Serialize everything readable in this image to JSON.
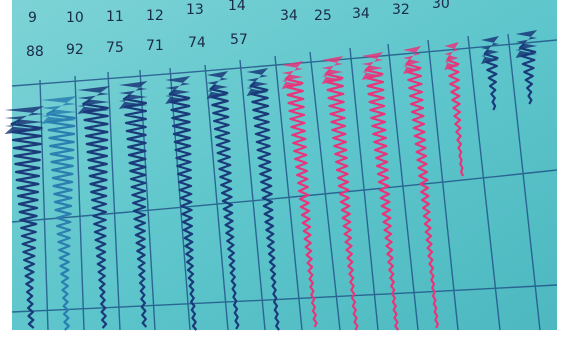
{
  "photo": {
    "top_row_numbers": [
      "9",
      "10",
      "11",
      "12",
      "13",
      "14",
      "",
      "34",
      "25",
      "34",
      "32",
      "30"
    ],
    "bottom_row_numbers": [
      "88",
      "92",
      "75",
      "71",
      "74",
      "57"
    ],
    "colors": {
      "paper": "#5ec6cc",
      "grid": "#1f4f86",
      "trace_blue": "#1a3a7a",
      "trace_cyan": "#2a7fb0",
      "trace_pink": "#e8357a",
      "border": "#ffffff"
    }
  }
}
